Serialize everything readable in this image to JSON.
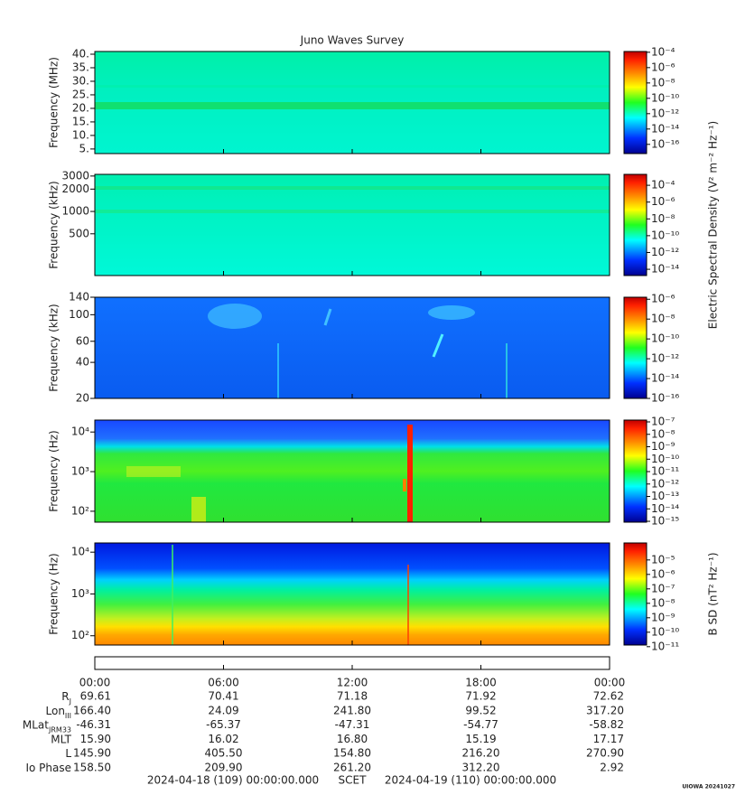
{
  "chart_data": {
    "type": "spectrogram",
    "title": "Juno Waves Survey",
    "xlim": [
      0,
      24
    ],
    "xticks": [
      {
        "value": 0,
        "label": "00:00"
      },
      {
        "value": 6,
        "label": "06:00"
      },
      {
        "value": 12,
        "label": "12:00"
      },
      {
        "value": 18,
        "label": "18:00"
      },
      {
        "value": 24,
        "label": "00:00"
      }
    ],
    "colorbar_labels": [
      {
        "text": "Electric Spectral Density (V² m⁻² Hz⁻¹)",
        "panels": [
          0,
          2
        ]
      },
      {
        "text": "B SD (nT² Hz⁻¹)",
        "panels": [
          4,
          4
        ]
      }
    ],
    "panels": [
      {
        "ylabel": "Frequency (MHz)",
        "log": false,
        "ylim": [
          3.3,
          41
        ],
        "yticks": [
          {
            "value": 5,
            "label": "5."
          },
          {
            "value": 10,
            "label": "10."
          },
          {
            "value": 15,
            "label": "15."
          },
          {
            "value": 20,
            "label": "20."
          },
          {
            "value": 25,
            "label": "25."
          },
          {
            "value": 30,
            "label": "30."
          },
          {
            "value": 35,
            "label": "35."
          },
          {
            "value": 40,
            "label": "40."
          }
        ],
        "clim": [
          6.3e-18,
          0.000126
        ],
        "cticks": [
          {
            "value": 0.0001,
            "label": "10⁻⁴"
          },
          {
            "value": 1e-06,
            "label": "10⁻⁶"
          },
          {
            "value": 1e-08,
            "label": "10⁻⁸"
          },
          {
            "value": 1e-10,
            "label": "10⁻¹⁰"
          },
          {
            "value": 1e-12,
            "label": "10⁻¹²"
          },
          {
            "value": 1e-14,
            "label": "10⁻¹⁴"
          },
          {
            "value": 1e-16,
            "label": "10⁻¹⁶"
          }
        ]
      },
      {
        "ylabel": "Frequency (kHz)",
        "log": true,
        "ylim": [
          137,
          3160
        ],
        "yticks": [
          500,
          1000,
          2000,
          3000
        ],
        "clim": [
          1.8e-15,
          0.002
        ],
        "cticks": [
          {
            "value": 0.0001,
            "label": "10⁻⁴"
          },
          {
            "value": 1e-06,
            "label": "10⁻⁶"
          },
          {
            "value": 1e-08,
            "label": "10⁻⁸"
          },
          {
            "value": 1e-10,
            "label": "10⁻¹⁰"
          },
          {
            "value": 1e-12,
            "label": "10⁻¹²"
          },
          {
            "value": 1e-14,
            "label": "10⁻¹⁴"
          }
        ]
      },
      {
        "ylabel": "Frequency (kHz)",
        "log": true,
        "ylim": [
          20,
          140
        ],
        "yticks": [
          20,
          40,
          60,
          100,
          140
        ],
        "clim": [
          1e-16,
          1.6e-06
        ],
        "cticks": [
          {
            "value": 1e-06,
            "label": "10⁻⁶"
          },
          {
            "value": 1e-08,
            "label": "10⁻⁸"
          },
          {
            "value": 1e-10,
            "label": "10⁻¹⁰"
          },
          {
            "value": 1e-12,
            "label": "10⁻¹²"
          },
          {
            "value": 1e-14,
            "label": "10⁻¹⁴"
          },
          {
            "value": 1e-16,
            "label": "10⁻¹⁶"
          }
        ]
      },
      {
        "ylabel": "Frequency (Hz)",
        "log": true,
        "ylim": [
          53,
          20000
        ],
        "yticks": [
          {
            "value": 100,
            "label": "10²"
          },
          {
            "value": 1000,
            "label": "10³"
          },
          {
            "value": 10000,
            "label": "10⁴"
          }
        ],
        "clim": [
          8.5e-16,
          1.4e-07
        ],
        "cticks": [
          {
            "value": 1e-07,
            "label": "10⁻⁷"
          },
          {
            "value": 1e-08,
            "label": "10⁻⁸"
          },
          {
            "value": 1e-09,
            "label": "10⁻⁹"
          },
          {
            "value": 1e-10,
            "label": "10⁻¹⁰"
          },
          {
            "value": 1e-11,
            "label": "10⁻¹¹"
          },
          {
            "value": 1e-12,
            "label": "10⁻¹²"
          },
          {
            "value": 1e-13,
            "label": "10⁻¹³"
          },
          {
            "value": 1e-14,
            "label": "10⁻¹⁴"
          },
          {
            "value": 1e-15,
            "label": "10⁻¹⁵"
          }
        ]
      },
      {
        "ylabel": "Frequency (Hz)",
        "log": true,
        "ylim": [
          60,
          16600
        ],
        "yticks": [
          {
            "value": 100,
            "label": "10²"
          },
          {
            "value": 1000,
            "label": "10³"
          },
          {
            "value": 10000,
            "label": "10⁴"
          }
        ],
        "clim": [
          1.3e-11,
          0.00015
        ],
        "cticks": [
          {
            "value": 1e-05,
            "label": "10⁻⁵"
          },
          {
            "value": 1e-06,
            "label": "10⁻⁶"
          },
          {
            "value": 1e-07,
            "label": "10⁻⁷"
          },
          {
            "value": 1e-08,
            "label": "10⁻⁸"
          },
          {
            "value": 1e-09,
            "label": "10⁻⁹"
          },
          {
            "value": 1e-10,
            "label": "10⁻¹⁰"
          },
          {
            "value": 1e-11,
            "label": "10⁻¹¹"
          }
        ]
      }
    ]
  },
  "ephemeris": {
    "rows": [
      {
        "label": "R",
        "sub": "J",
        "values": [
          "69.61",
          "70.41",
          "71.18",
          "71.92",
          "72.62"
        ]
      },
      {
        "label": "Lon",
        "sub": "III",
        "values": [
          "166.40",
          "24.09",
          "241.80",
          "99.52",
          "317.20"
        ]
      },
      {
        "label": "MLat",
        "sub": "JRM33",
        "values": [
          "-46.31",
          "-65.37",
          "-47.31",
          "-54.77",
          "-58.82"
        ]
      },
      {
        "label": "MLT",
        "values": [
          "15.90",
          "16.02",
          "16.80",
          "15.19",
          "17.17"
        ]
      },
      {
        "label": "L",
        "values": [
          "145.90",
          "405.50",
          "154.80",
          "216.20",
          "270.90"
        ]
      },
      {
        "label": "Io Phase",
        "values": [
          "158.50",
          "209.90",
          "261.20",
          "312.20",
          "2.92"
        ]
      }
    ]
  },
  "footer": {
    "start": "2024-04-18 (109) 00:00:00.000",
    "middle": "SCET",
    "end": "2024-04-19 (110) 00:00:00.000",
    "credit": "UIOWA 20241027"
  }
}
